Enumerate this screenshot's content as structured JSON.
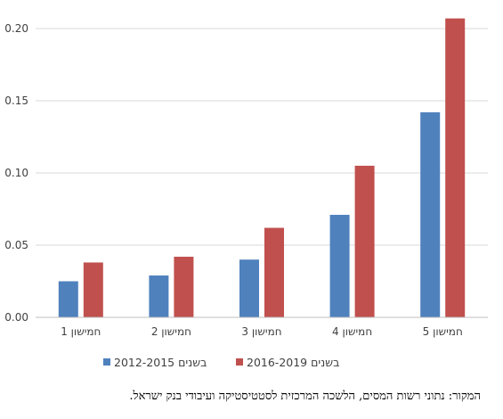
{
  "chart_data": {
    "type": "bar",
    "categories": [
      "חמישון 1",
      "חמישון 2",
      "חמישון 3",
      "חמישון 4",
      "חמישון 5"
    ],
    "series": [
      {
        "name": "בשנים 2012-2015",
        "color": "#4F81BD",
        "values": [
          0.025,
          0.029,
          0.04,
          0.071,
          0.142
        ]
      },
      {
        "name": "בשנים 2016-2019",
        "color": "#C0504D",
        "values": [
          0.038,
          0.042,
          0.062,
          0.105,
          0.207
        ]
      }
    ],
    "yticks": [
      "0.00",
      "0.05",
      "0.10",
      "0.15",
      "0.20"
    ],
    "ylim": [
      0,
      0.2
    ],
    "grid": true,
    "legend_position": "bottom"
  },
  "source_note": "המקור: נתוני רשות המסים, הלשכה המרכזית לסטטיסטיקה ועיבודי בנק ישראל."
}
